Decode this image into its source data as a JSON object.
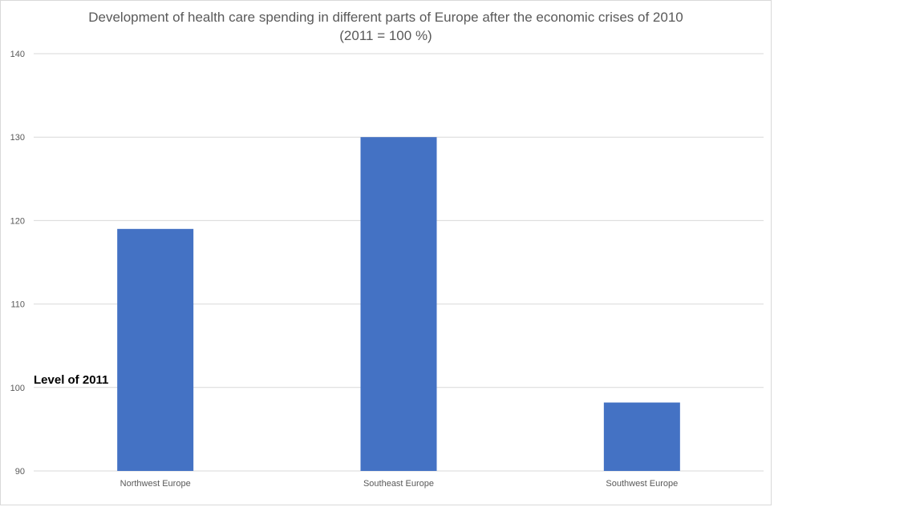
{
  "chart_data": {
    "type": "bar",
    "title": "Development of health care spending in different parts of Europe after the economic crises of 2010",
    "subtitle": "(2011 = 100 %)",
    "categories": [
      "Northwest Europe",
      "Southeast Europe",
      "Southwest Europe"
    ],
    "values": [
      119,
      130,
      98.2
    ],
    "ylim": [
      90,
      140
    ],
    "yticks": [
      90,
      100,
      110,
      120,
      130,
      140
    ],
    "grid": true,
    "bar_color": "#4472c4",
    "grid_color": "#d9d9d9",
    "annotation": "Level of 2011",
    "xlabel": "",
    "ylabel": ""
  }
}
